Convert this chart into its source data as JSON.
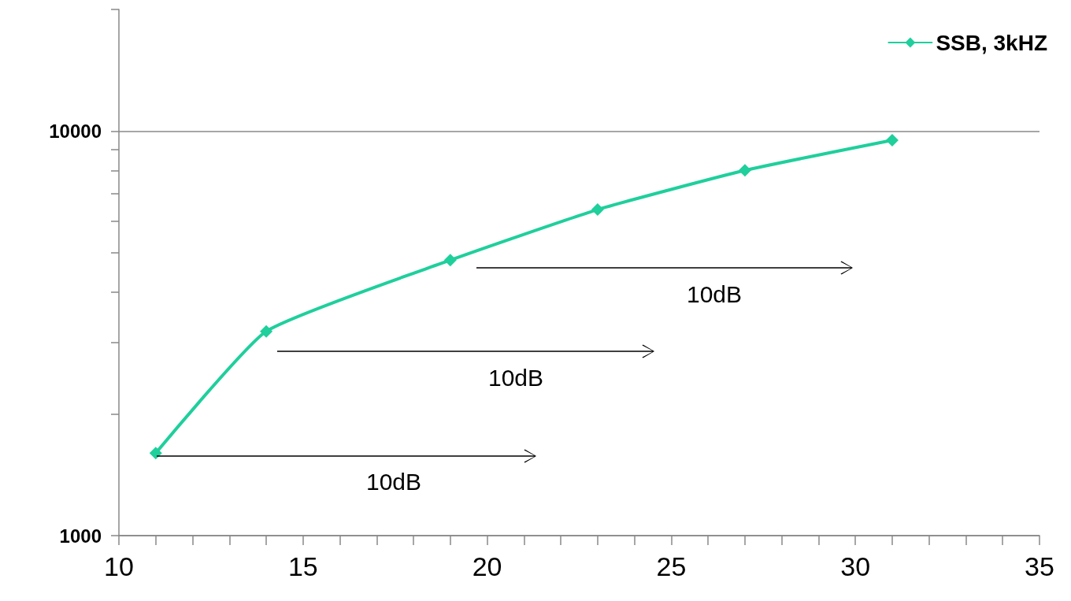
{
  "chart_data": {
    "type": "line",
    "log": "y",
    "grid": "y",
    "legend": "top right",
    "marker": "diamond",
    "line_style": "solid",
    "x": [
      11,
      14,
      19,
      23,
      27,
      31
    ],
    "series": [
      {
        "name": "SSB, 3kHZ",
        "color": "#1fcf9c",
        "values": [
          1600,
          3200,
          4800,
          6400,
          8000,
          9500
        ]
      }
    ],
    "xlim": [
      10,
      35
    ],
    "xticks": [
      10,
      {
        "value": 11,
        "label": null
      },
      {
        "value": 12,
        "label": null
      },
      {
        "value": 13,
        "label": null
      },
      {
        "value": 14,
        "label": null
      },
      15,
      {
        "value": 16,
        "label": null
      },
      {
        "value": 17,
        "label": null
      },
      {
        "value": 18,
        "label": null
      },
      {
        "value": 19,
        "label": null
      },
      20,
      {
        "value": 21,
        "label": null
      },
      {
        "value": 22,
        "label": null
      },
      {
        "value": 23,
        "label": null
      },
      {
        "value": 24,
        "label": null
      },
      25,
      {
        "value": 26,
        "label": null
      },
      {
        "value": 27,
        "label": null
      },
      {
        "value": 28,
        "label": null
      },
      {
        "value": 29,
        "label": null
      },
      30,
      {
        "value": 31,
        "label": null
      },
      {
        "value": 32,
        "label": null
      },
      {
        "value": 33,
        "label": null
      },
      {
        "value": 34,
        "label": null
      },
      35
    ],
    "ylim": [
      1000,
      20000
    ],
    "yticks": [
      1000,
      {
        "value": 2000,
        "label": null
      },
      {
        "value": 3000,
        "label": null
      },
      {
        "value": 4000,
        "label": null
      },
      {
        "value": 5000,
        "label": null
      },
      {
        "value": 6000,
        "label": null
      },
      {
        "value": 7000,
        "label": null
      },
      {
        "value": 8000,
        "label": null
      },
      {
        "value": 9000,
        "label": null
      },
      10000,
      {
        "value": 20000,
        "label": null
      }
    ],
    "annotations": [
      "10dB",
      "10dB",
      "10dB"
    ]
  }
}
